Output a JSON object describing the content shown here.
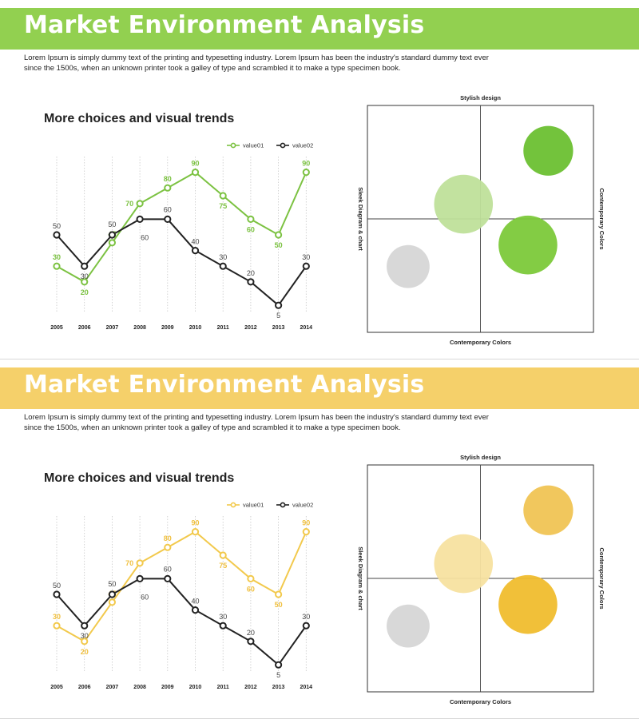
{
  "slides": [
    {
      "accent": "#92d050",
      "title": "Market Environment Analysis",
      "description": "Lorem Ipsum is simply dummy text of the printing and typesetting industry. Lorem Ipsum has been the industry's standard dummy text ever since the 1500s, when an unknown printer took a galley of type and scrambled it to make a type specimen book.",
      "chart_title": "More choices and visual trends"
    },
    {
      "accent": "#f5d06a",
      "title": "Market Environment Analysis",
      "description": "Lorem Ipsum is simply dummy text of the printing and typesetting industry. Lorem Ipsum has been the industry's standard dummy text ever since the 1500s, when an unknown printer took a galley of type and scrambled it to make a type specimen book.",
      "chart_title": "More choices and visual trends"
    }
  ],
  "chart_data": [
    {
      "type": "line",
      "title": "More choices and visual trends",
      "categories": [
        "2005",
        "2006",
        "2007",
        "2008",
        "2009",
        "2010",
        "2011",
        "2012",
        "2013",
        "2014"
      ],
      "ylim": [
        0,
        100
      ],
      "series": [
        {
          "name": "value01",
          "values": [
            30,
            20,
            45,
            70,
            80,
            90,
            75,
            60,
            50,
            90
          ],
          "color": "#7cc242",
          "label_color": "#7cc242"
        },
        {
          "name": "value02",
          "values": [
            50,
            30,
            50,
            60,
            60,
            40,
            30,
            20,
            5,
            30
          ],
          "color": "#222222",
          "label_color": "#444444"
        }
      ]
    },
    {
      "type": "scatter",
      "subtype": "bubble-quadrant",
      "top_label": "Stylish design",
      "bottom_label": "Contemporary Colors",
      "left_label": "Sleek Diagram & chart",
      "right_label": "Contemporary Colors",
      "xlim": [
        -1,
        1
      ],
      "ylim": [
        -1,
        1
      ],
      "points": [
        {
          "x": 0.6,
          "y": 0.6,
          "size": 0.22,
          "tone": "strong"
        },
        {
          "x": -0.15,
          "y": 0.13,
          "size": 0.26,
          "tone": "light"
        },
        {
          "x": 0.42,
          "y": -0.23,
          "size": 0.26,
          "tone": "medium"
        },
        {
          "x": -0.64,
          "y": -0.42,
          "size": 0.19,
          "tone": "gray"
        }
      ]
    },
    {
      "type": "line",
      "title": "More choices and visual trends",
      "categories": [
        "2005",
        "2006",
        "2007",
        "2008",
        "2009",
        "2010",
        "2011",
        "2012",
        "2013",
        "2014"
      ],
      "ylim": [
        0,
        100
      ],
      "series": [
        {
          "name": "value01",
          "values": [
            30,
            20,
            45,
            70,
            80,
            90,
            75,
            60,
            50,
            90
          ],
          "color": "#f2c94c",
          "label_color": "#f0c040"
        },
        {
          "name": "value02",
          "values": [
            50,
            30,
            50,
            60,
            60,
            40,
            30,
            20,
            5,
            30
          ],
          "color": "#222222",
          "label_color": "#444444"
        }
      ]
    },
    {
      "type": "scatter",
      "subtype": "bubble-quadrant",
      "top_label": "Stylish design",
      "bottom_label": "Contemporary Colors",
      "left_label": "Sleek Diagram & chart",
      "right_label": "Contemporary Colors",
      "xlim": [
        -1,
        1
      ],
      "ylim": [
        -1,
        1
      ],
      "points": [
        {
          "x": 0.6,
          "y": 0.6,
          "size": 0.22,
          "tone": "strong"
        },
        {
          "x": -0.15,
          "y": 0.13,
          "size": 0.26,
          "tone": "light"
        },
        {
          "x": 0.42,
          "y": -0.23,
          "size": 0.26,
          "tone": "medium"
        },
        {
          "x": -0.64,
          "y": -0.42,
          "size": 0.19,
          "tone": "gray"
        }
      ]
    }
  ],
  "bubble_palettes": [
    {
      "strong": "#6cc031",
      "light": "#bfe09a",
      "medium": "#7cc93a",
      "gray": "#d6d6d6"
    },
    {
      "strong": "#f0c454",
      "light": "#f7e1a0",
      "medium": "#f0bd2e",
      "gray": "#d6d6d6"
    }
  ]
}
